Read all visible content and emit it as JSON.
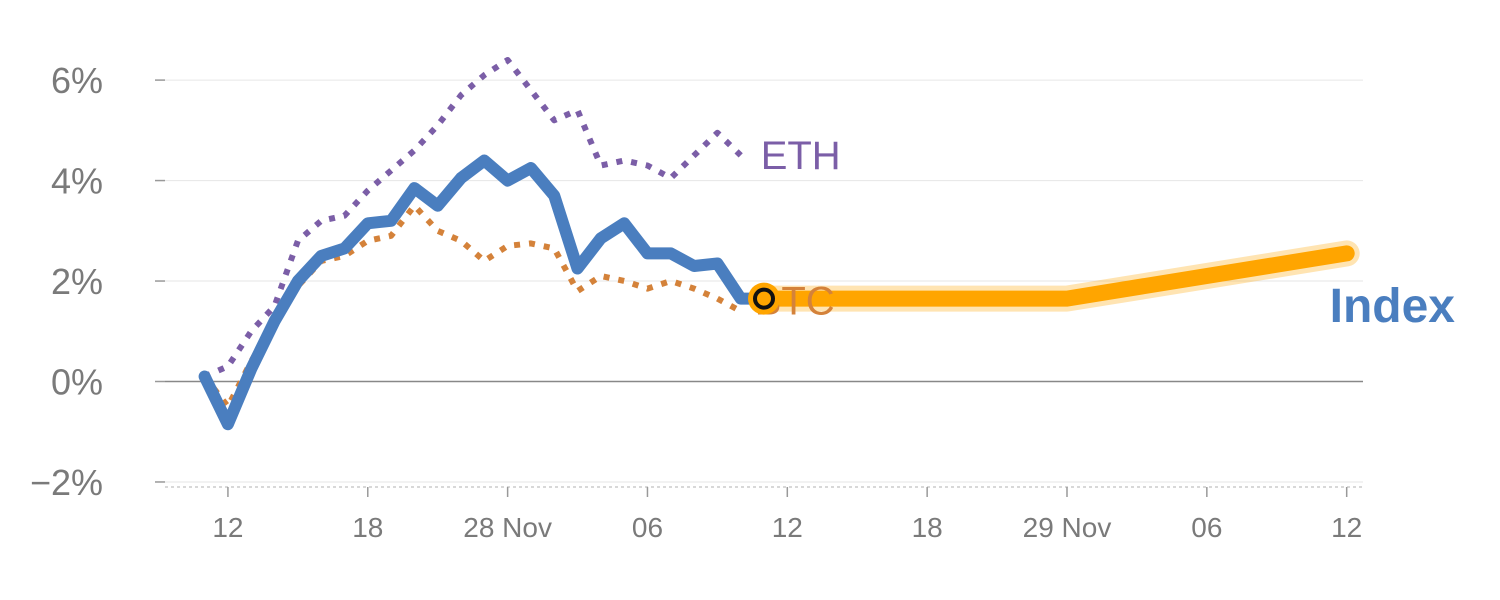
{
  "chart_data": {
    "type": "line",
    "y_ticks": [
      {
        "value": 6,
        "label": "6%"
      },
      {
        "value": 4,
        "label": "4%"
      },
      {
        "value": 2,
        "label": "2%"
      },
      {
        "value": 0,
        "label": "0%"
      },
      {
        "value": -2,
        "label": "−2%"
      }
    ],
    "x_ticks": [
      {
        "value": 1,
        "label": "12"
      },
      {
        "value": 7,
        "label": "18"
      },
      {
        "value": 13,
        "label": "28 Nov"
      },
      {
        "value": 19,
        "label": "06"
      },
      {
        "value": 25,
        "label": "12"
      },
      {
        "value": 31,
        "label": "18"
      },
      {
        "value": 37,
        "label": "29 Nov"
      },
      {
        "value": 43,
        "label": "06"
      },
      {
        "value": 49,
        "label": "12"
      }
    ],
    "xlim": [
      -1.7,
      49.7
    ],
    "ylim": [
      -2.1,
      6.4
    ],
    "series": [
      {
        "name": "ETH",
        "label": "ETH",
        "style": "dotted",
        "color": "#7b5ea7",
        "x": [
          0,
          1,
          2,
          3,
          4,
          5,
          6,
          7,
          8,
          9,
          10,
          11,
          12,
          13,
          14,
          15,
          16,
          17,
          18,
          19,
          20,
          21,
          22,
          23
        ],
        "y": [
          0.1,
          0.3,
          1.0,
          1.5,
          2.8,
          3.2,
          3.3,
          3.8,
          4.2,
          4.6,
          5.1,
          5.7,
          6.1,
          6.4,
          5.8,
          5.2,
          5.4,
          4.3,
          4.4,
          4.3,
          4.05,
          4.5,
          4.95,
          4.5
        ]
      },
      {
        "name": "BTC",
        "label": "BTC",
        "style": "dotted",
        "color": "#d4823a",
        "x": [
          0,
          1,
          2,
          3,
          4,
          5,
          6,
          7,
          8,
          9,
          10,
          11,
          12,
          13,
          14,
          15,
          16,
          17,
          18,
          19,
          20,
          21,
          22,
          23
        ],
        "y": [
          0.1,
          -0.5,
          0.4,
          1.2,
          1.9,
          2.4,
          2.5,
          2.8,
          2.9,
          3.5,
          3.0,
          2.8,
          2.4,
          2.7,
          2.75,
          2.65,
          1.8,
          2.1,
          2.0,
          1.85,
          2.0,
          1.85,
          1.65,
          1.4
        ]
      },
      {
        "name": "Index",
        "label": "Index",
        "style": "solid",
        "color": "#4a7ebf",
        "x": [
          0,
          1,
          2,
          3,
          4,
          5,
          6,
          7,
          8,
          9,
          10,
          11,
          12,
          13,
          14,
          15,
          16,
          17,
          18,
          19,
          20,
          21,
          22,
          23,
          24
        ],
        "y": [
          0.1,
          -0.85,
          0.25,
          1.2,
          2.0,
          2.5,
          2.65,
          3.15,
          3.2,
          3.85,
          3.5,
          4.05,
          4.4,
          4.0,
          4.25,
          3.7,
          2.25,
          2.85,
          3.15,
          2.55,
          2.55,
          2.3,
          2.35,
          1.65,
          1.65
        ]
      },
      {
        "name": "Index projection",
        "label": "",
        "style": "highlight",
        "color": "#ffa500",
        "x": [
          24,
          37,
          49
        ],
        "y": [
          1.65,
          1.65,
          2.55
        ]
      }
    ],
    "marker": {
      "x": 24,
      "y": 1.65,
      "color": "#ffa500"
    }
  }
}
